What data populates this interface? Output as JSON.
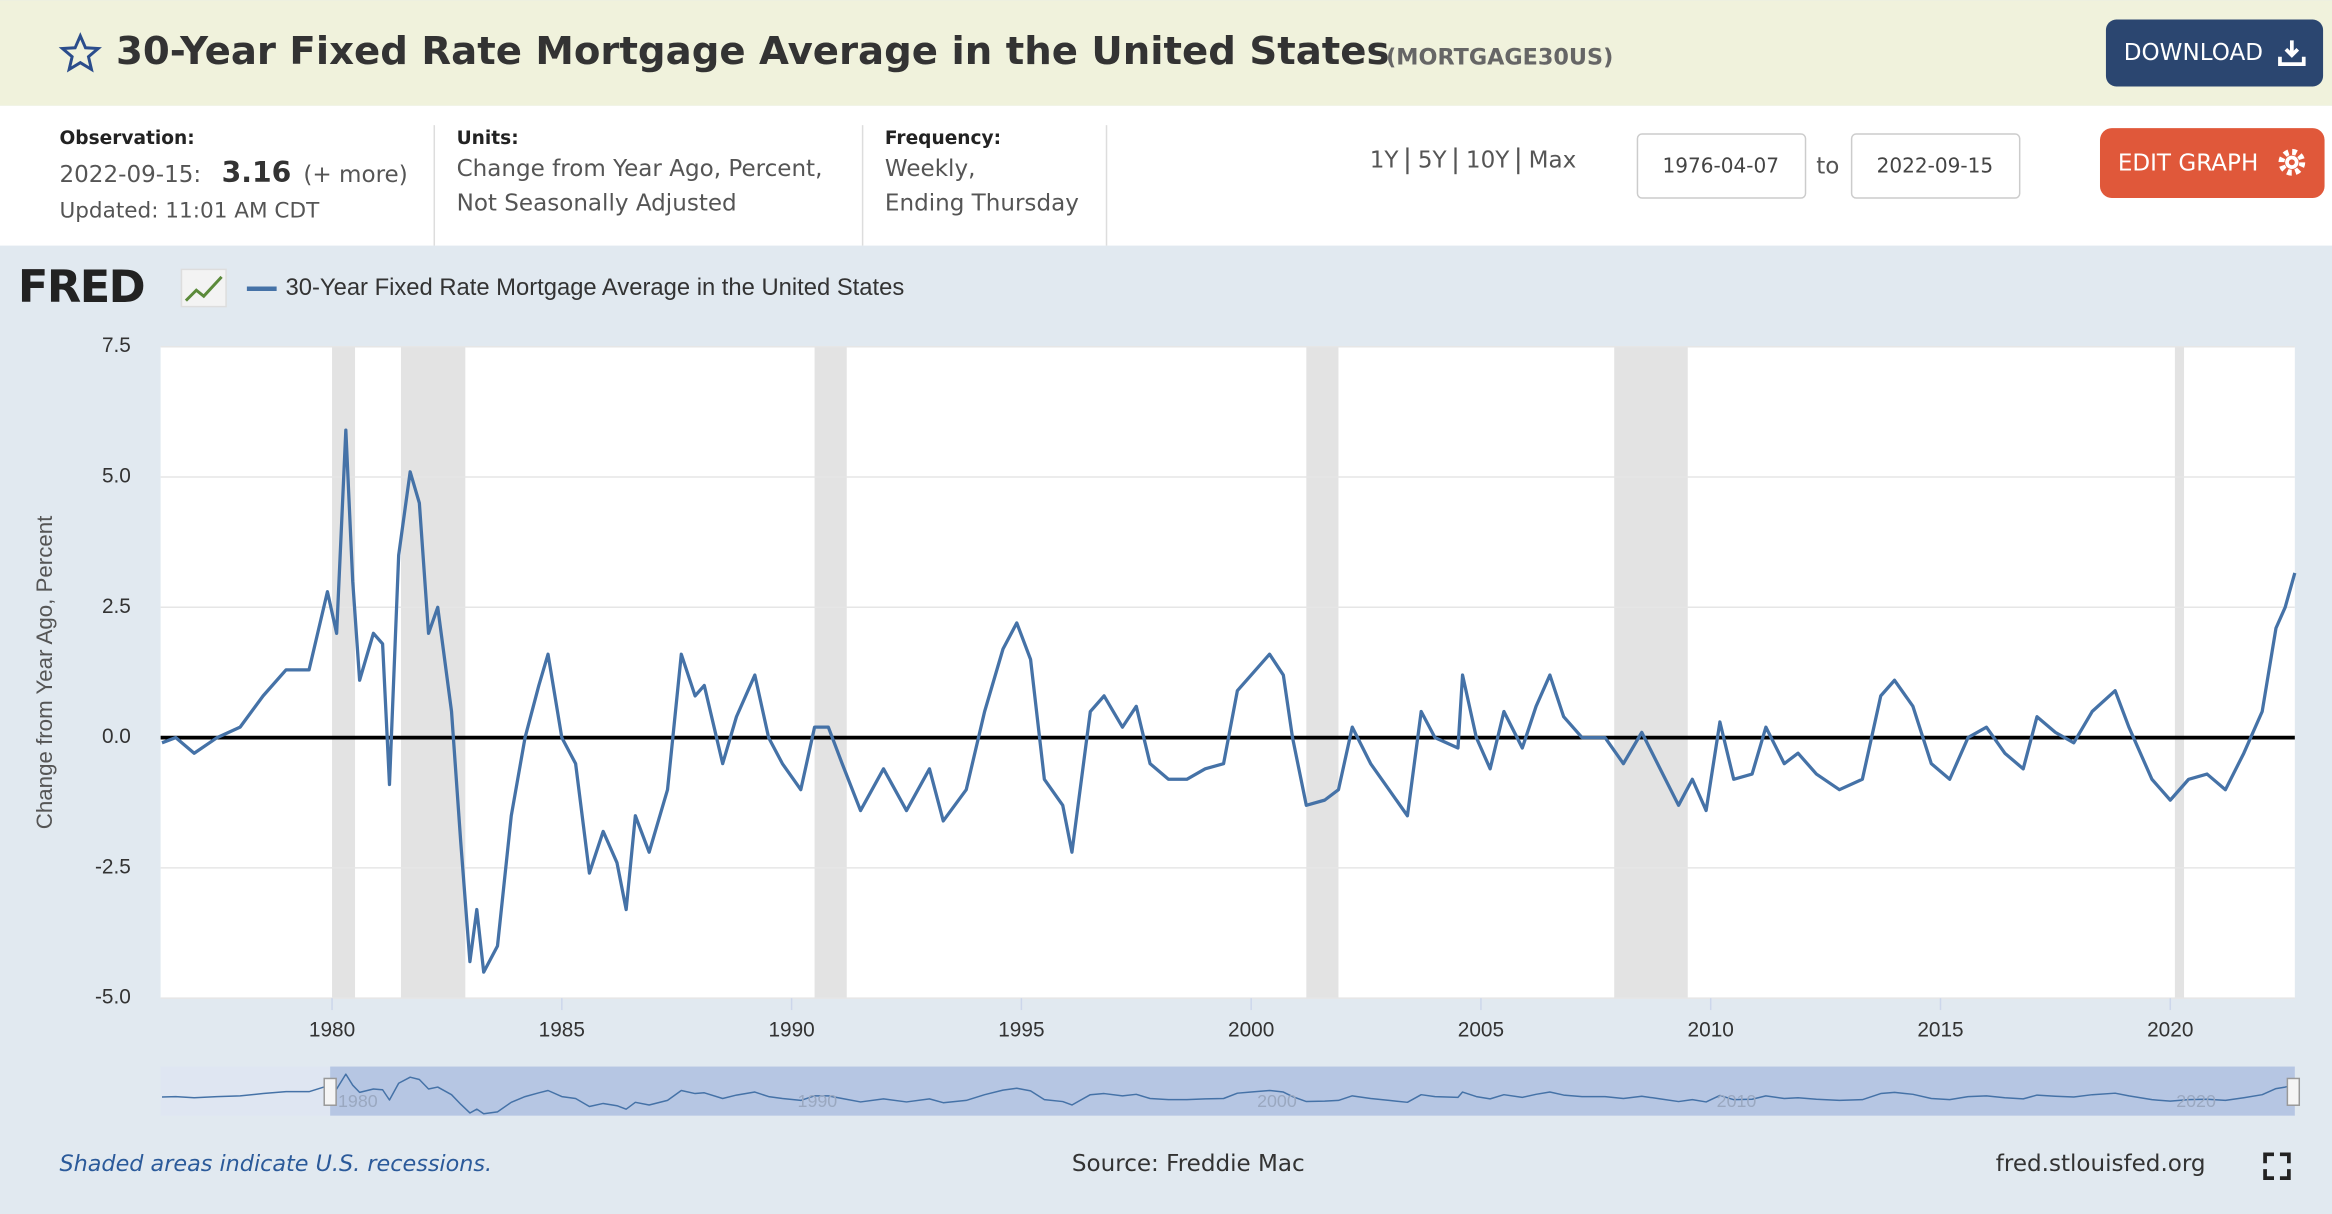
{
  "header": {
    "title": "30-Year Fixed Rate Mortgage Average in the United States",
    "series_id": "(MORTGAGE30US)",
    "download": "DOWNLOAD"
  },
  "info": {
    "observation_label": "Observation:",
    "observation_date": "2022-09-15:",
    "observation_value": "3.16",
    "more": "(+ more)",
    "updated": "Updated: 11:01 AM CDT",
    "units_label": "Units:",
    "units_line1": "Change from Year Ago, Percent,",
    "units_line2": "Not Seasonally Adjusted",
    "frequency_label": "Frequency:",
    "frequency_line1": "Weekly,",
    "frequency_line2": "Ending Thursday",
    "ranges": [
      "1Y",
      "5Y",
      "10Y",
      "Max"
    ],
    "start_date": "1976-04-07",
    "to": "to",
    "end_date": "2022-09-15",
    "edit": "EDIT GRAPH"
  },
  "chart_data": {
    "type": "line",
    "logo": "FRED",
    "ylabel": "Change from Year Ago, Percent",
    "xlim": [
      1976.27,
      2022.71
    ],
    "xticks": [
      1980,
      1985,
      1990,
      1995,
      2000,
      2005,
      2010,
      2015,
      2020
    ],
    "ylim": [
      -5,
      7.5
    ],
    "yticks": [
      7.5,
      {
        "value": 5,
        "label": "5.0"
      },
      2.5,
      {
        "value": 0,
        "label": "0.0"
      },
      -2.5,
      {
        "value": -5,
        "label": "-5.0"
      }
    ],
    "grid": true,
    "recessions": [
      [
        1980.0,
        1980.5
      ],
      [
        1981.5,
        1982.9
      ],
      [
        1990.5,
        1991.2
      ],
      [
        2001.2,
        2001.9
      ],
      [
        2007.9,
        2009.5
      ],
      [
        2020.1,
        2020.3
      ]
    ],
    "navigator_ticks": [
      1980,
      1990,
      2000,
      2010,
      2020
    ],
    "x": [
      1976.3,
      1976.6,
      1977,
      1977.5,
      1978,
      1978.5,
      1979,
      1979.5,
      1979.9,
      1980.1,
      1980.3,
      1980.45,
      1980.6,
      1980.9,
      1981.1,
      1981.25,
      1981.45,
      1981.7,
      1981.9,
      1982.1,
      1982.3,
      1982.6,
      1982.8,
      1983.0,
      1983.15,
      1983.3,
      1983.6,
      1983.9,
      1984.2,
      1984.5,
      1984.7,
      1985.0,
      1985.3,
      1985.6,
      1985.9,
      1986.2,
      1986.4,
      1986.6,
      1986.9,
      1987.3,
      1987.6,
      1987.9,
      1988.1,
      1988.5,
      1988.8,
      1989.2,
      1989.5,
      1989.8,
      1990.2,
      1990.5,
      1990.8,
      1991.1,
      1991.5,
      1992.0,
      1992.5,
      1993.0,
      1993.3,
      1993.8,
      1994.2,
      1994.6,
      1994.9,
      1995.2,
      1995.5,
      1995.9,
      1996.1,
      1996.5,
      1996.8,
      1997.2,
      1997.5,
      1997.8,
      1998.2,
      1998.6,
      1999.0,
      1999.4,
      1999.7,
      2000.0,
      2000.4,
      2000.7,
      2000.9,
      2001.2,
      2001.6,
      2001.9,
      2002.2,
      2002.6,
      2003.0,
      2003.4,
      2003.7,
      2004.0,
      2004.5,
      2004.6,
      2004.9,
      2005.2,
      2005.5,
      2005.9,
      2006.2,
      2006.5,
      2006.8,
      2007.2,
      2007.7,
      2008.1,
      2008.5,
      2008.9,
      2009.3,
      2009.6,
      2009.9,
      2010.2,
      2010.5,
      2010.9,
      2011.2,
      2011.6,
      2011.9,
      2012.3,
      2012.8,
      2013.3,
      2013.7,
      2014.0,
      2014.4,
      2014.8,
      2015.2,
      2015.6,
      2016.0,
      2016.4,
      2016.8,
      2017.1,
      2017.5,
      2017.9,
      2018.3,
      2018.8,
      2019.1,
      2019.6,
      2020.0,
      2020.4,
      2020.8,
      2021.2,
      2021.6,
      2022.0,
      2022.3,
      2022.5,
      2022.71
    ],
    "series": [
      {
        "name": "30-Year Fixed Rate Mortgage Average in the United States",
        "color": "#4572a7",
        "values": [
          -0.1,
          0.0,
          -0.3,
          0.0,
          0.2,
          0.8,
          1.3,
          1.3,
          2.8,
          2.0,
          5.9,
          3.0,
          1.1,
          2.0,
          1.8,
          -0.9,
          3.5,
          5.1,
          4.5,
          2.0,
          2.5,
          0.5,
          -2.0,
          -4.3,
          -3.3,
          -4.5,
          -4.0,
          -1.5,
          0.0,
          1.0,
          1.6,
          0.0,
          -0.5,
          -2.6,
          -1.8,
          -2.4,
          -3.3,
          -1.5,
          -2.2,
          -1.0,
          1.6,
          0.8,
          1.0,
          -0.5,
          0.4,
          1.2,
          0.0,
          -0.5,
          -1.0,
          0.2,
          0.2,
          -0.5,
          -1.4,
          -0.6,
          -1.4,
          -0.6,
          -1.6,
          -1.0,
          0.5,
          1.7,
          2.2,
          1.5,
          -0.8,
          -1.3,
          -2.2,
          0.5,
          0.8,
          0.2,
          0.6,
          -0.5,
          -0.8,
          -0.8,
          -0.6,
          -0.5,
          0.9,
          1.2,
          1.6,
          1.2,
          0.0,
          -1.3,
          -1.2,
          -1.0,
          0.2,
          -0.5,
          -1.0,
          -1.5,
          0.5,
          0.0,
          -0.2,
          1.2,
          0.0,
          -0.6,
          0.5,
          -0.2,
          0.6,
          1.2,
          0.4,
          0.0,
          0.0,
          -0.5,
          0.1,
          -0.6,
          -1.3,
          -0.8,
          -1.4,
          0.3,
          -0.8,
          -0.7,
          0.2,
          -0.5,
          -0.3,
          -0.7,
          -1.0,
          -0.8,
          0.8,
          1.1,
          0.6,
          -0.5,
          -0.8,
          0.0,
          0.2,
          -0.3,
          -0.6,
          0.4,
          0.1,
          -0.1,
          0.5,
          0.9,
          0.2,
          -0.8,
          -1.2,
          -0.8,
          -0.7,
          -1.0,
          -0.3,
          0.5,
          2.1,
          2.5,
          3.16
        ]
      }
    ]
  },
  "footer": {
    "note": "Shaded areas indicate U.S. recessions.",
    "source": "Source: Freddie Mac",
    "site": "fred.stlouisfed.org"
  }
}
